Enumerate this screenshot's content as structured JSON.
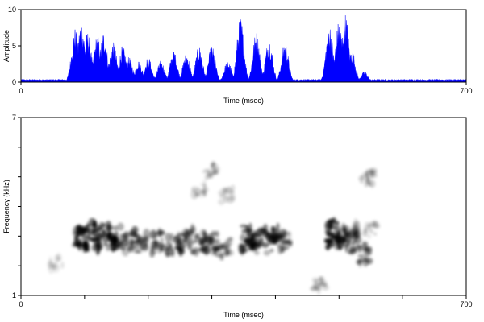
{
  "charts": [
    {
      "id": "oscillogram",
      "type": "area",
      "xlabel": "Time (msec)",
      "ylabel": "Amplitude",
      "xlim": [
        0,
        700
      ],
      "ylim": [
        0,
        10
      ],
      "x_ticks": [
        "0",
        "700"
      ],
      "y_ticks": [
        "0",
        "5",
        "10"
      ],
      "fill_color": "#0000ff",
      "baseline_level": 0.4,
      "envelope_peaks": [
        {
          "t": 85,
          "amp": 7.5
        },
        {
          "t": 95,
          "amp": 8.5
        },
        {
          "t": 105,
          "amp": 7.0
        },
        {
          "t": 120,
          "amp": 6.5
        },
        {
          "t": 130,
          "amp": 7.0
        },
        {
          "t": 145,
          "amp": 5.5
        },
        {
          "t": 160,
          "amp": 5.0
        },
        {
          "t": 170,
          "amp": 3.5
        },
        {
          "t": 185,
          "amp": 3.0
        },
        {
          "t": 200,
          "amp": 3.5
        },
        {
          "t": 220,
          "amp": 3.0
        },
        {
          "t": 240,
          "amp": 4.5
        },
        {
          "t": 260,
          "amp": 4.0
        },
        {
          "t": 280,
          "amp": 5.0
        },
        {
          "t": 300,
          "amp": 5.0
        },
        {
          "t": 325,
          "amp": 3.0
        },
        {
          "t": 345,
          "amp": 9.0
        },
        {
          "t": 370,
          "amp": 7.0
        },
        {
          "t": 390,
          "amp": 6.0
        },
        {
          "t": 415,
          "amp": 5.5
        },
        {
          "t": 485,
          "amp": 8.0
        },
        {
          "t": 500,
          "amp": 8.5
        },
        {
          "t": 510,
          "amp": 9.5
        },
        {
          "t": 520,
          "amp": 4.5
        },
        {
          "t": 540,
          "amp": 1.5
        }
      ]
    },
    {
      "id": "spectrogram",
      "type": "heatmap",
      "xlabel": "Time (msec)",
      "ylabel": "Frequency (kHz)",
      "xlim": [
        0,
        700
      ],
      "ylim": [
        1,
        7
      ],
      "x_ticks": [
        "0",
        "700"
      ],
      "y_ticks": [
        "1",
        "7"
      ],
      "x_minor_ticks": [
        100,
        200,
        300,
        400,
        500,
        600
      ],
      "y_minor_ticks": [
        2,
        3,
        4,
        5,
        6
      ],
      "colormap": "grayscale",
      "ink_color": "#000000",
      "energy_blobs": [
        {
          "t": 95,
          "f": 3.0,
          "intensity": 0.85
        },
        {
          "t": 110,
          "f": 3.0,
          "intensity": 0.9
        },
        {
          "t": 130,
          "f": 2.95,
          "intensity": 0.85
        },
        {
          "t": 150,
          "f": 2.9,
          "intensity": 0.75
        },
        {
          "t": 170,
          "f": 2.8,
          "intensity": 0.6
        },
        {
          "t": 190,
          "f": 2.8,
          "intensity": 0.55
        },
        {
          "t": 215,
          "f": 2.8,
          "intensity": 0.55
        },
        {
          "t": 240,
          "f": 2.75,
          "intensity": 0.55
        },
        {
          "t": 260,
          "f": 2.85,
          "intensity": 0.6
        },
        {
          "t": 280,
          "f": 2.8,
          "intensity": 0.55
        },
        {
          "t": 300,
          "f": 2.75,
          "intensity": 0.55
        },
        {
          "t": 320,
          "f": 2.6,
          "intensity": 0.45
        },
        {
          "t": 355,
          "f": 2.95,
          "intensity": 0.85
        },
        {
          "t": 375,
          "f": 2.8,
          "intensity": 0.7
        },
        {
          "t": 395,
          "f": 2.85,
          "intensity": 0.7
        },
        {
          "t": 415,
          "f": 2.85,
          "intensity": 0.55
        },
        {
          "t": 490,
          "f": 3.1,
          "intensity": 0.9
        },
        {
          "t": 505,
          "f": 3.0,
          "intensity": 0.75
        },
        {
          "t": 520,
          "f": 2.8,
          "intensity": 0.55
        },
        {
          "t": 540,
          "f": 2.4,
          "intensity": 0.5
        },
        {
          "t": 525,
          "f": 3.2,
          "intensity": 0.3
        },
        {
          "t": 550,
          "f": 3.2,
          "intensity": 0.2
        },
        {
          "t": 300,
          "f": 5.2,
          "intensity": 0.25
        },
        {
          "t": 325,
          "f": 4.4,
          "intensity": 0.25
        },
        {
          "t": 280,
          "f": 4.5,
          "intensity": 0.2
        },
        {
          "t": 470,
          "f": 1.4,
          "intensity": 0.25
        },
        {
          "t": 545,
          "f": 4.9,
          "intensity": 0.3
        },
        {
          "t": 55,
          "f": 2.1,
          "intensity": 0.15
        }
      ]
    }
  ]
}
